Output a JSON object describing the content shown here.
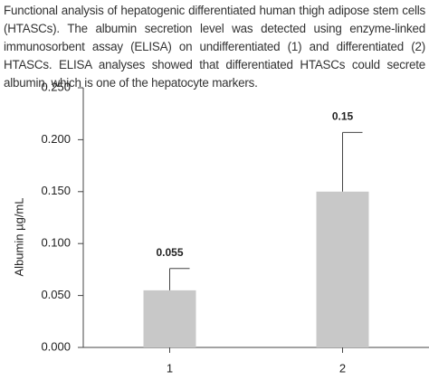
{
  "caption": "Functional analysis of hepatogenic differentiated human thigh adipose stem cells (HTASCs). The albumin secretion level was detected using enzyme-linked immunosorbent assay (ELISA) on undifferentiated (1) and differentiated (2) HTASCs. ELISA analyses showed that differentiated HTASCs could secrete albumin, which is one of the hepatocyte markers.",
  "chart_data": {
    "type": "bar",
    "y_label": "Albumin µg/mL",
    "categories": [
      "1",
      "2"
    ],
    "values": [
      0.055,
      0.15
    ],
    "errors": [
      0.021,
      0.057
    ],
    "color": "#c8c8c8",
    "ylim": [
      0,
      0.25
    ],
    "yticks": [
      {
        "value": 0,
        "label": "0.000"
      },
      {
        "value": 0.05,
        "label": "0.050"
      },
      {
        "value": 0.1,
        "label": "0.100"
      },
      {
        "value": 0.15,
        "label": "0.150"
      },
      {
        "value": 0.2,
        "label": "0.200"
      },
      {
        "value": 0.25,
        "label": "0.250"
      }
    ],
    "grid": false
  }
}
